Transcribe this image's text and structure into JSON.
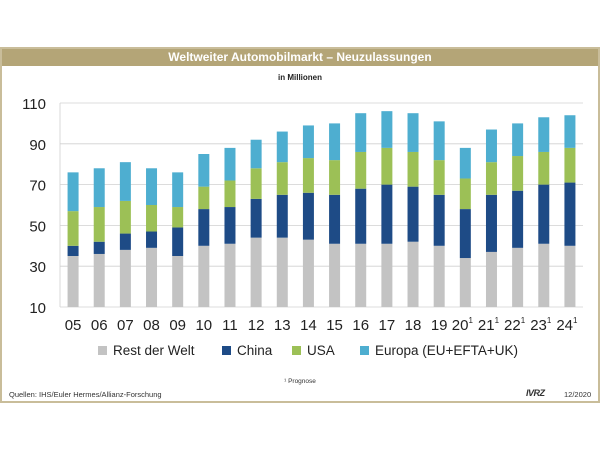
{
  "header": {
    "title": "Weltweiter Automobilmarkt – Neuzulassungen",
    "subtitle": "in Millionen"
  },
  "footer": {
    "source": "Quellen: IHS/Euler Hermes/Allianz-Forschung",
    "footnote": "¹ Prognose",
    "logo": "IVRZ",
    "date": "12/2020"
  },
  "colors": {
    "rest": "#c3c3c3",
    "china": "#1e4b86",
    "usa": "#9cc056",
    "europa": "#4eaed0",
    "grid": "#d0d0d0"
  },
  "chart_data": {
    "type": "bar",
    "stacked": true,
    "title": "Weltweiter Automobilmarkt – Neuzulassungen",
    "subtitle": "in Millionen",
    "categories": [
      "05",
      "06",
      "07",
      "08",
      "09",
      "10",
      "11",
      "12",
      "13",
      "14",
      "15",
      "16",
      "17",
      "18",
      "19",
      "20¹",
      "21¹",
      "22¹",
      "23¹",
      "24¹"
    ],
    "series": [
      {
        "name": "Rest der Welt",
        "values": [
          25,
          26,
          28,
          29,
          25,
          30,
          31,
          34,
          34,
          33,
          31,
          31,
          31,
          32,
          30,
          24,
          27,
          29,
          31,
          30
        ]
      },
      {
        "name": "China",
        "values": [
          5,
          6,
          8,
          8,
          14,
          18,
          18,
          19,
          21,
          23,
          24,
          27,
          29,
          27,
          25,
          24,
          28,
          28,
          29,
          31
        ]
      },
      {
        "name": "USA",
        "values": [
          17,
          17,
          16,
          13,
          10,
          11,
          13,
          15,
          16,
          17,
          17,
          18,
          18,
          17,
          17,
          15,
          16,
          17,
          16,
          17
        ]
      },
      {
        "name": "Europa (EU+EFTA+UK)",
        "values": [
          19,
          19,
          19,
          18,
          17,
          16,
          16,
          14,
          15,
          16,
          18,
          19,
          18,
          19,
          19,
          15,
          16,
          16,
          17,
          16
        ]
      }
    ],
    "ylim": [
      10,
      110
    ],
    "yticks": [
      10,
      30,
      50,
      70,
      90,
      110
    ],
    "xlabel": "",
    "ylabel": "",
    "grid": true,
    "legend": "bottom"
  }
}
